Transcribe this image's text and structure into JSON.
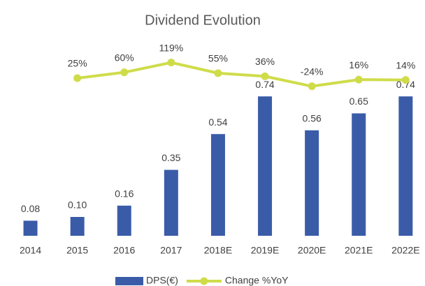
{
  "chart_data": {
    "type": "bar",
    "title": "Dividend Evolution",
    "categories": [
      "2014",
      "2015",
      "2016",
      "2017",
      "2018E",
      "2019E",
      "2020E",
      "2021E",
      "2022E"
    ],
    "series": [
      {
        "name": "DPS(€)",
        "type": "bar",
        "color": "#3a5ca8",
        "values": [
          0.08,
          0.1,
          0.16,
          0.35,
          0.54,
          0.74,
          0.56,
          0.65,
          0.74
        ],
        "value_labels": [
          "0.08",
          "0.10",
          "0.16",
          "0.35",
          "0.54",
          "0.74",
          "0.56",
          "0.65",
          "0.74"
        ]
      },
      {
        "name": "Change %YoY",
        "type": "line",
        "axis": "y2",
        "color": "#cfdc4a",
        "values": [
          null,
          25,
          60,
          119,
          55,
          36,
          -24,
          16,
          14
        ],
        "value_labels": [
          null,
          "25%",
          "60%",
          "119%",
          "55%",
          "36%",
          "-24%",
          "16%",
          "14%"
        ]
      }
    ],
    "ylim": [
      0,
      1
    ],
    "y2lim": [
      -925,
      210
    ],
    "legend": "bottom"
  }
}
